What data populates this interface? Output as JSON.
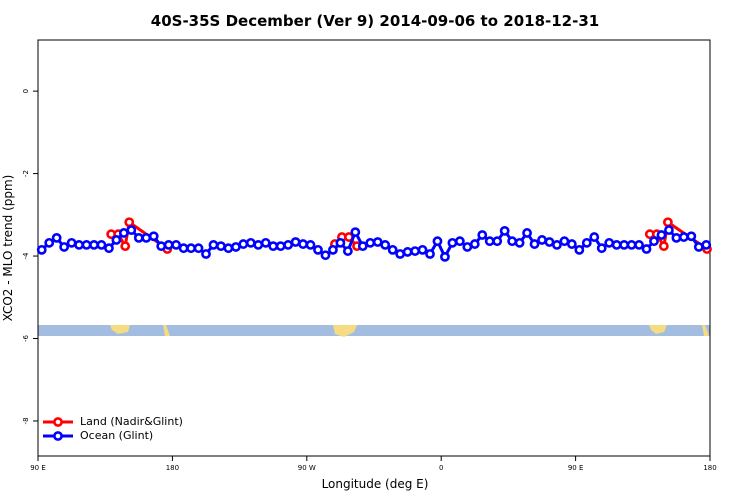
{
  "chart_data": {
    "type": "line",
    "title": "40S-35S December (Ver 9)   2014-09-06 to 2018-12-31",
    "x_label": "Longitude (deg E)",
    "y_label": "XCO2 - MLO trend (ppm)",
    "xlim": [
      90,
      540
    ],
    "xticks": [
      {
        "value": 90,
        "label": "90 E"
      },
      180,
      {
        "value": 270,
        "label": "90 W"
      },
      {
        "value": 360,
        "label": "0"
      },
      {
        "value": 450,
        "label": "90 E"
      },
      {
        "value": 540,
        "label": "180"
      }
    ],
    "ylim": [
      -8.85,
      1.24
    ],
    "yticks": [
      -8,
      -6,
      -4,
      -2,
      0
    ],
    "legend": "bottom-left",
    "series": [
      {
        "name": "Land (Nadir&Glint)",
        "color": "#ff0000",
        "x": [
          139.0,
          143.7,
          148.4,
          151.1,
          176.6,
          null,
          288.8,
          293.5,
          298.2,
          303.6,
          null,
          499.7,
          504.4,
          509.1,
          511.8,
          538.0
        ],
        "values": [
          -3.47,
          -3.47,
          -3.76,
          -3.18,
          -3.83,
          null,
          -3.71,
          -3.54,
          -3.54,
          -3.76,
          null,
          -3.47,
          -3.47,
          -3.76,
          -3.18,
          -3.83
        ]
      },
      {
        "name": "Ocean (Glint)",
        "color": "#0000ff",
        "x": [
          92.5,
          97.5,
          102.5,
          107.5,
          112.5,
          117.5,
          122.5,
          127.5,
          132.5,
          137.5,
          142.5,
          147.5,
          152.5,
          157.5,
          162.5,
          167.5,
          172.5,
          177.5,
          182.5,
          187.5,
          192.5,
          197.5,
          202.5,
          207.5,
          212.5,
          217.5,
          222.5,
          227.5,
          232.5,
          237.5,
          242.5,
          247.5,
          252.5,
          257.5,
          262.5,
          267.5,
          272.5,
          277.5,
          282.5,
          287.5,
          292.5,
          297.5,
          302.5,
          307.5,
          312.5,
          317.5,
          322.5,
          327.5,
          332.5,
          337.5,
          342.5,
          347.5,
          352.5,
          357.5,
          362.5,
          367.5,
          372.5,
          377.5,
          382.5,
          387.5,
          392.5,
          397.5,
          402.5,
          407.5,
          412.5,
          417.5,
          422.5,
          427.5,
          432.5,
          437.5,
          442.5,
          447.5,
          452.5,
          457.5,
          462.5,
          467.5,
          472.5,
          477.5,
          482.5,
          487.5,
          492.5,
          497.5,
          502.5,
          507.5,
          512.5,
          517.5,
          522.5,
          527.5,
          532.5,
          537.5
        ],
        "values": [
          -3.85,
          -3.68,
          -3.56,
          -3.78,
          -3.68,
          -3.73,
          -3.73,
          -3.73,
          -3.73,
          -3.81,
          -3.61,
          -3.44,
          -3.37,
          -3.56,
          -3.56,
          -3.52,
          -3.76,
          -3.73,
          -3.73,
          -3.81,
          -3.81,
          -3.81,
          -3.95,
          -3.73,
          -3.76,
          -3.81,
          -3.78,
          -3.71,
          -3.68,
          -3.73,
          -3.68,
          -3.76,
          -3.76,
          -3.73,
          -3.66,
          -3.71,
          -3.73,
          -3.85,
          -3.98,
          -3.85,
          -3.68,
          -3.88,
          -3.42,
          -3.76,
          -3.68,
          -3.66,
          -3.73,
          -3.85,
          -3.95,
          -3.9,
          -3.88,
          -3.85,
          -3.95,
          -3.64,
          -4.02,
          -3.68,
          -3.64,
          -3.78,
          -3.71,
          -3.49,
          -3.64,
          -3.64,
          -3.39,
          -3.64,
          -3.68,
          -3.44,
          -3.71,
          -3.61,
          -3.66,
          -3.73,
          -3.64,
          -3.71,
          -3.85,
          -3.68,
          -3.54,
          -3.81,
          -3.68,
          -3.73,
          -3.73,
          -3.73,
          -3.73,
          -3.83,
          -3.64,
          -3.49,
          -3.37,
          -3.56,
          -3.54,
          -3.52,
          -3.78,
          -3.73
        ]
      }
    ]
  }
}
